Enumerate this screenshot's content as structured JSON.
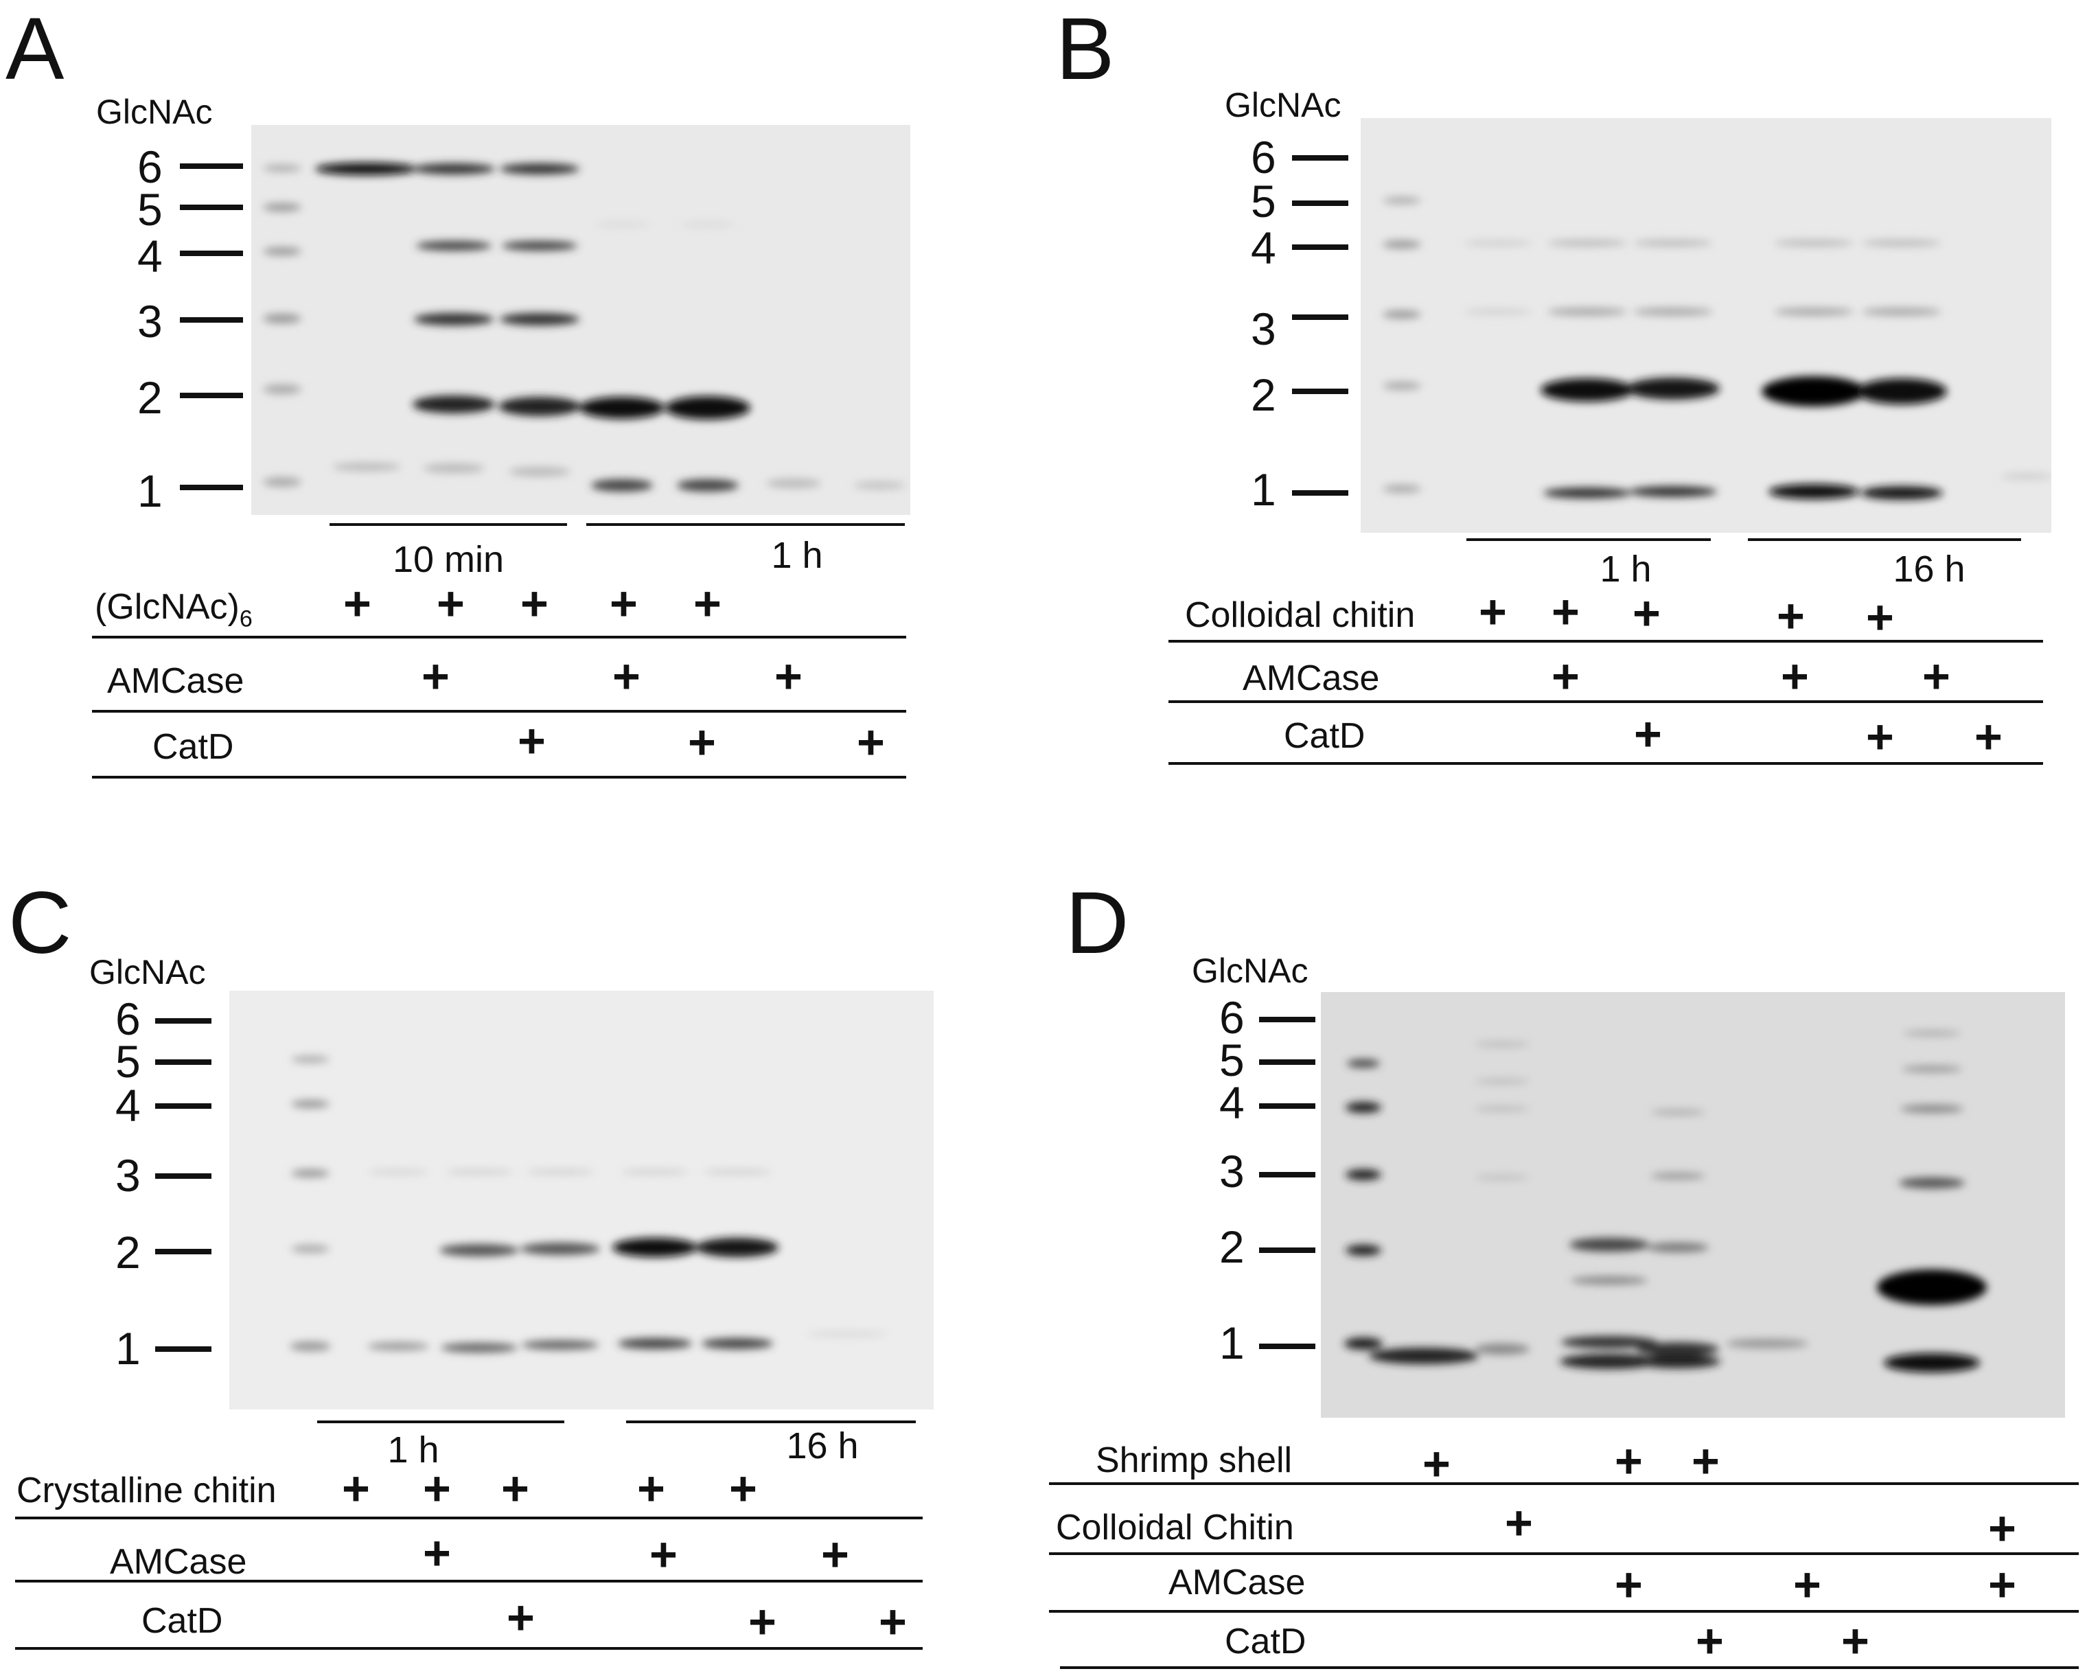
{
  "panels": [
    {
      "letter": "A",
      "ladder_title": "GlcNAc",
      "markers": [
        "6",
        "5",
        "4",
        "3",
        "2",
        "1"
      ],
      "times": [
        "10 min",
        "1 h"
      ],
      "rows": [
        {
          "label": "(GlcNAc)",
          "sub": "6",
          "lanes": [
            "+",
            "+",
            "+",
            "+",
            "+",
            "",
            ""
          ]
        },
        {
          "label": "AMCase",
          "lanes": [
            "",
            "+",
            "",
            "+",
            "",
            "+",
            ""
          ]
        },
        {
          "label": "CatD",
          "lanes": [
            "",
            "",
            "+",
            "",
            "+",
            "",
            "+"
          ]
        }
      ]
    },
    {
      "letter": "B",
      "ladder_title": "GlcNAc",
      "markers": [
        "6",
        "5",
        "4",
        "3",
        "2",
        "1"
      ],
      "times": [
        "1 h",
        "16 h"
      ],
      "rows": [
        {
          "label": "Colloidal chitin",
          "lanes": [
            "+",
            "+",
            "+",
            "+",
            "+",
            "",
            ""
          ]
        },
        {
          "label": "AMCase",
          "lanes": [
            "",
            "+",
            "",
            "+",
            "",
            "+",
            ""
          ]
        },
        {
          "label": "CatD",
          "lanes": [
            "",
            "",
            "+",
            "",
            "+",
            "",
            "+"
          ]
        }
      ]
    },
    {
      "letter": "C",
      "ladder_title": "GlcNAc",
      "markers": [
        "6",
        "5",
        "4",
        "3",
        "2",
        "1"
      ],
      "times": [
        "1 h",
        "16 h"
      ],
      "rows": [
        {
          "label": "Crystalline chitin",
          "lanes": [
            "+",
            "+",
            "+",
            "+",
            "+",
            "",
            ""
          ]
        },
        {
          "label": "AMCase",
          "lanes": [
            "",
            "+",
            "",
            "+",
            "",
            "+",
            ""
          ]
        },
        {
          "label": "CatD",
          "lanes": [
            "",
            "",
            "+",
            "",
            "+",
            "",
            "+"
          ]
        }
      ]
    },
    {
      "letter": "D",
      "ladder_title": "GlcNAc",
      "markers": [
        "6",
        "5",
        "4",
        "3",
        "2",
        "1"
      ],
      "times": [],
      "rows": [
        {
          "label": "Shrimp shell",
          "lanes": [
            "+",
            "",
            "+",
            "+",
            "",
            ""
          ]
        },
        {
          "label": "Colloidal Chitin",
          "lanes": [
            "",
            "+",
            "",
            "",
            "",
            "+"
          ]
        },
        {
          "label": "AMCase",
          "lanes": [
            "",
            "",
            "+",
            "",
            "+",
            "+"
          ]
        },
        {
          "label": "CatD",
          "lanes": [
            "",
            "",
            "",
            "+",
            "+",
            ""
          ]
        }
      ]
    }
  ]
}
